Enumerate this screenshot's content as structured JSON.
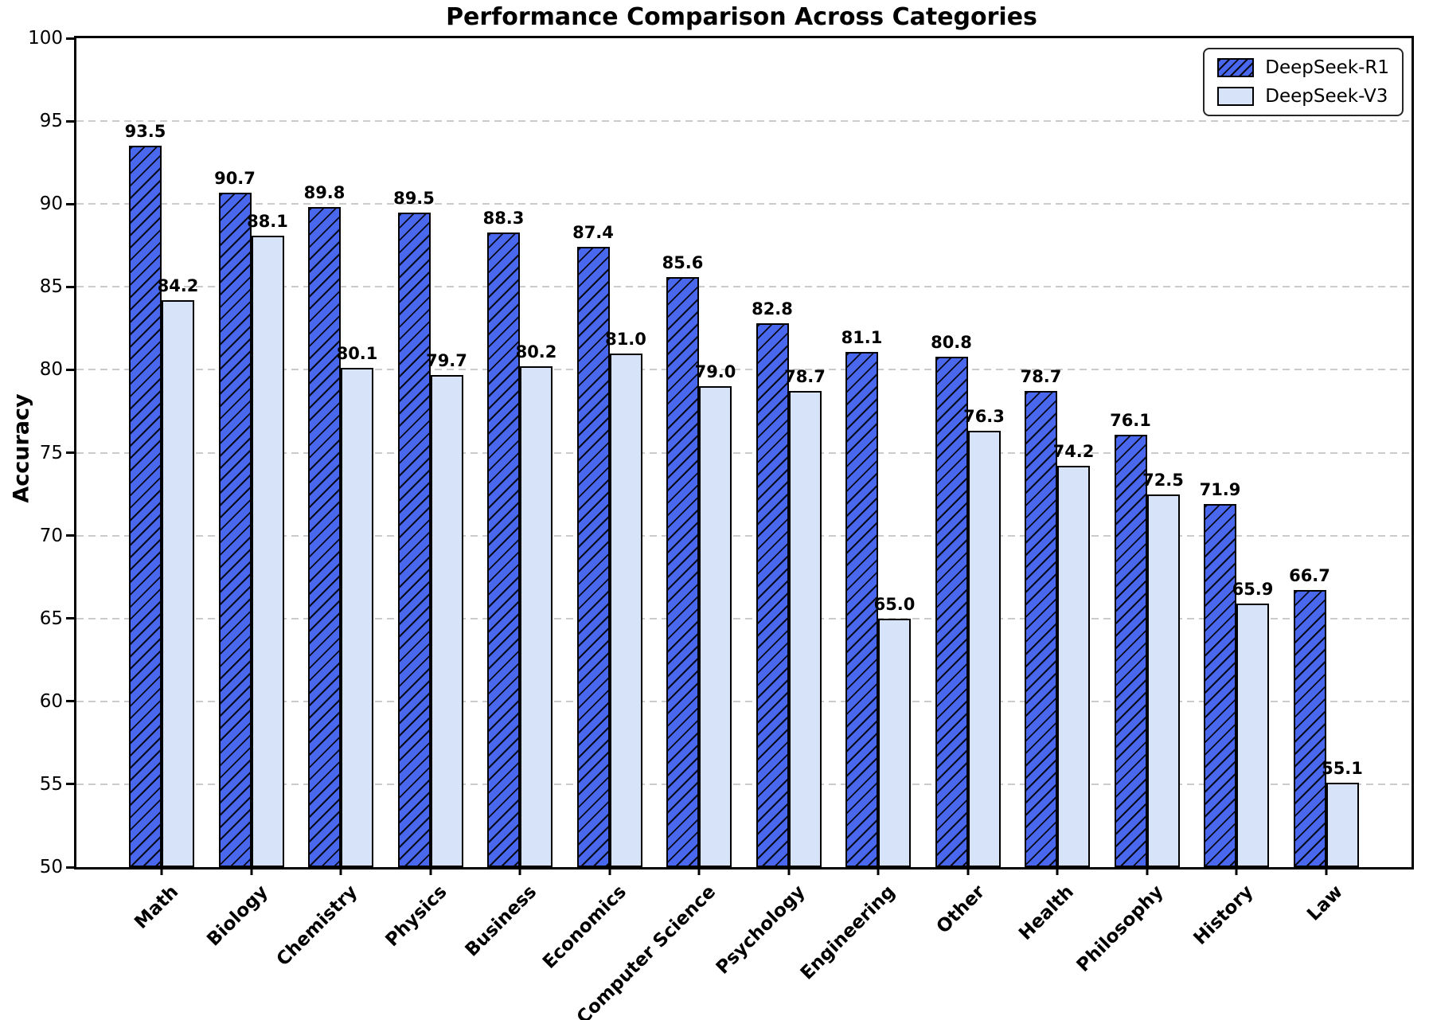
{
  "chart_data": {
    "type": "bar",
    "title": "Performance Comparison Across Categories",
    "xlabel": "",
    "ylabel": "Accuracy",
    "categories": [
      "Math",
      "Biology",
      "Chemistry",
      "Physics",
      "Business",
      "Economics",
      "Computer Science",
      "Psychology",
      "Engineering",
      "Other",
      "Health",
      "Philosophy",
      "History",
      "Law"
    ],
    "series": [
      {
        "name": "DeepSeek-R1",
        "color": "#4A68EE",
        "hatch": "/",
        "values": [
          93.5,
          90.7,
          89.8,
          89.5,
          88.3,
          87.4,
          85.6,
          82.8,
          81.1,
          80.8,
          78.7,
          76.1,
          71.9,
          66.7
        ]
      },
      {
        "name": "DeepSeek-V3",
        "color": "#D6E3F9",
        "hatch": "",
        "values": [
          84.2,
          88.1,
          80.1,
          79.7,
          80.2,
          81.0,
          79.0,
          78.7,
          65.0,
          76.3,
          74.2,
          72.5,
          65.9,
          55.1
        ]
      }
    ],
    "ylim": [
      50,
      100
    ],
    "ytick_step": 5,
    "grid": "horizontal-dashed",
    "gridline_color": "#cbcbcb",
    "legend_position": "upper right",
    "bar_edge_color": "#000000",
    "value_label_decimals": 1
  }
}
